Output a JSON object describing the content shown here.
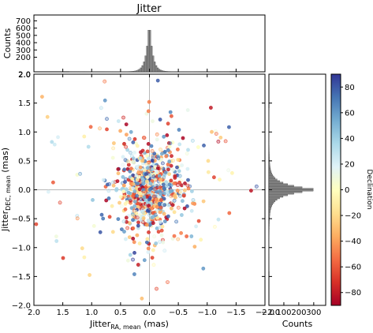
{
  "chart_data": {
    "type": "scatter",
    "title": "Jitter",
    "scatter": {
      "xlabel": "Jitter",
      "xlabel_sub": "RA, mean",
      "xlabel_unit": " (mas)",
      "ylabel": "Jitter",
      "ylabel_sub": "DEC, mean",
      "ylabel_unit": " (mas)",
      "xlim": [
        2.0,
        -2.0
      ],
      "ylim": [
        -2.0,
        2.0
      ],
      "xticks": [
        2.0,
        1.5,
        1.0,
        0.5,
        0.0,
        -0.5,
        -1.0,
        -1.5,
        -2.0
      ],
      "yticks": [
        -2.0,
        -1.5,
        -1.0,
        -0.5,
        0.0,
        0.5,
        1.0,
        1.5,
        2.0
      ],
      "x_sigma_core": 0.25,
      "y_sigma_core": 0.35,
      "n_points_approx": 900,
      "reference_lines": [
        0,
        0
      ]
    },
    "top_histogram": {
      "ylabel": "Counts",
      "yticks": [
        200,
        300,
        400,
        500,
        600,
        700
      ],
      "ylim": [
        0,
        780
      ],
      "peak_x": 0.0,
      "peak_count": 720
    },
    "right_histogram": {
      "xlabel": "Counts",
      "xticks": [
        100,
        200,
        300
      ],
      "xlim": [
        0,
        380
      ],
      "peak_y": 0.0,
      "peak_count": 335
    },
    "colorbar": {
      "label": "Declination",
      "ticks": [
        80,
        60,
        40,
        20,
        0,
        -20,
        -40,
        -60,
        -80
      ],
      "range": [
        -90,
        90
      ],
      "colormap": "RdYlBu",
      "colors": [
        "#a50026",
        "#d73027",
        "#f46d43",
        "#fdae61",
        "#fee090",
        "#ffffbf",
        "#e0f3f8",
        "#abd9e9",
        "#74add1",
        "#4575b4",
        "#313695"
      ]
    }
  }
}
